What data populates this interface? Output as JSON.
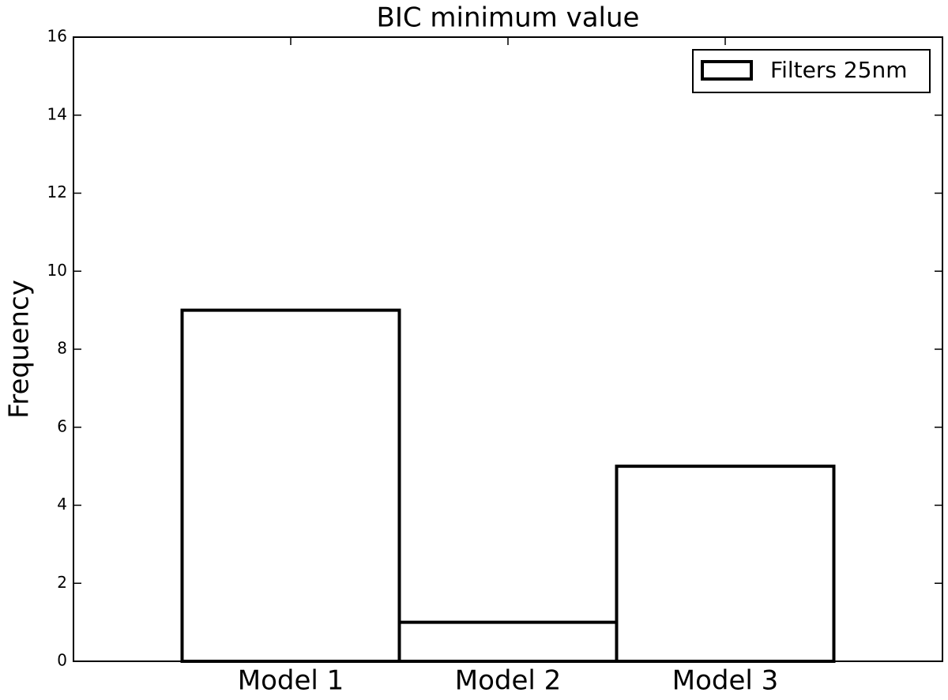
{
  "chart_data": {
    "type": "bar",
    "title": "BIC minimum value",
    "y_label": "Frequency",
    "categories": [
      "Model 1",
      "Model 2",
      "Model 3"
    ],
    "series": [
      {
        "name": "Filters 25nm",
        "color": "#ffffff",
        "edgecolor": "#000000",
        "values": [
          9,
          1,
          5
        ]
      }
    ],
    "ylim": [
      0,
      16
    ],
    "yticks": [
      0,
      2,
      4,
      6,
      8,
      10,
      12,
      14,
      16
    ],
    "grid": false,
    "legend": "upper right"
  }
}
